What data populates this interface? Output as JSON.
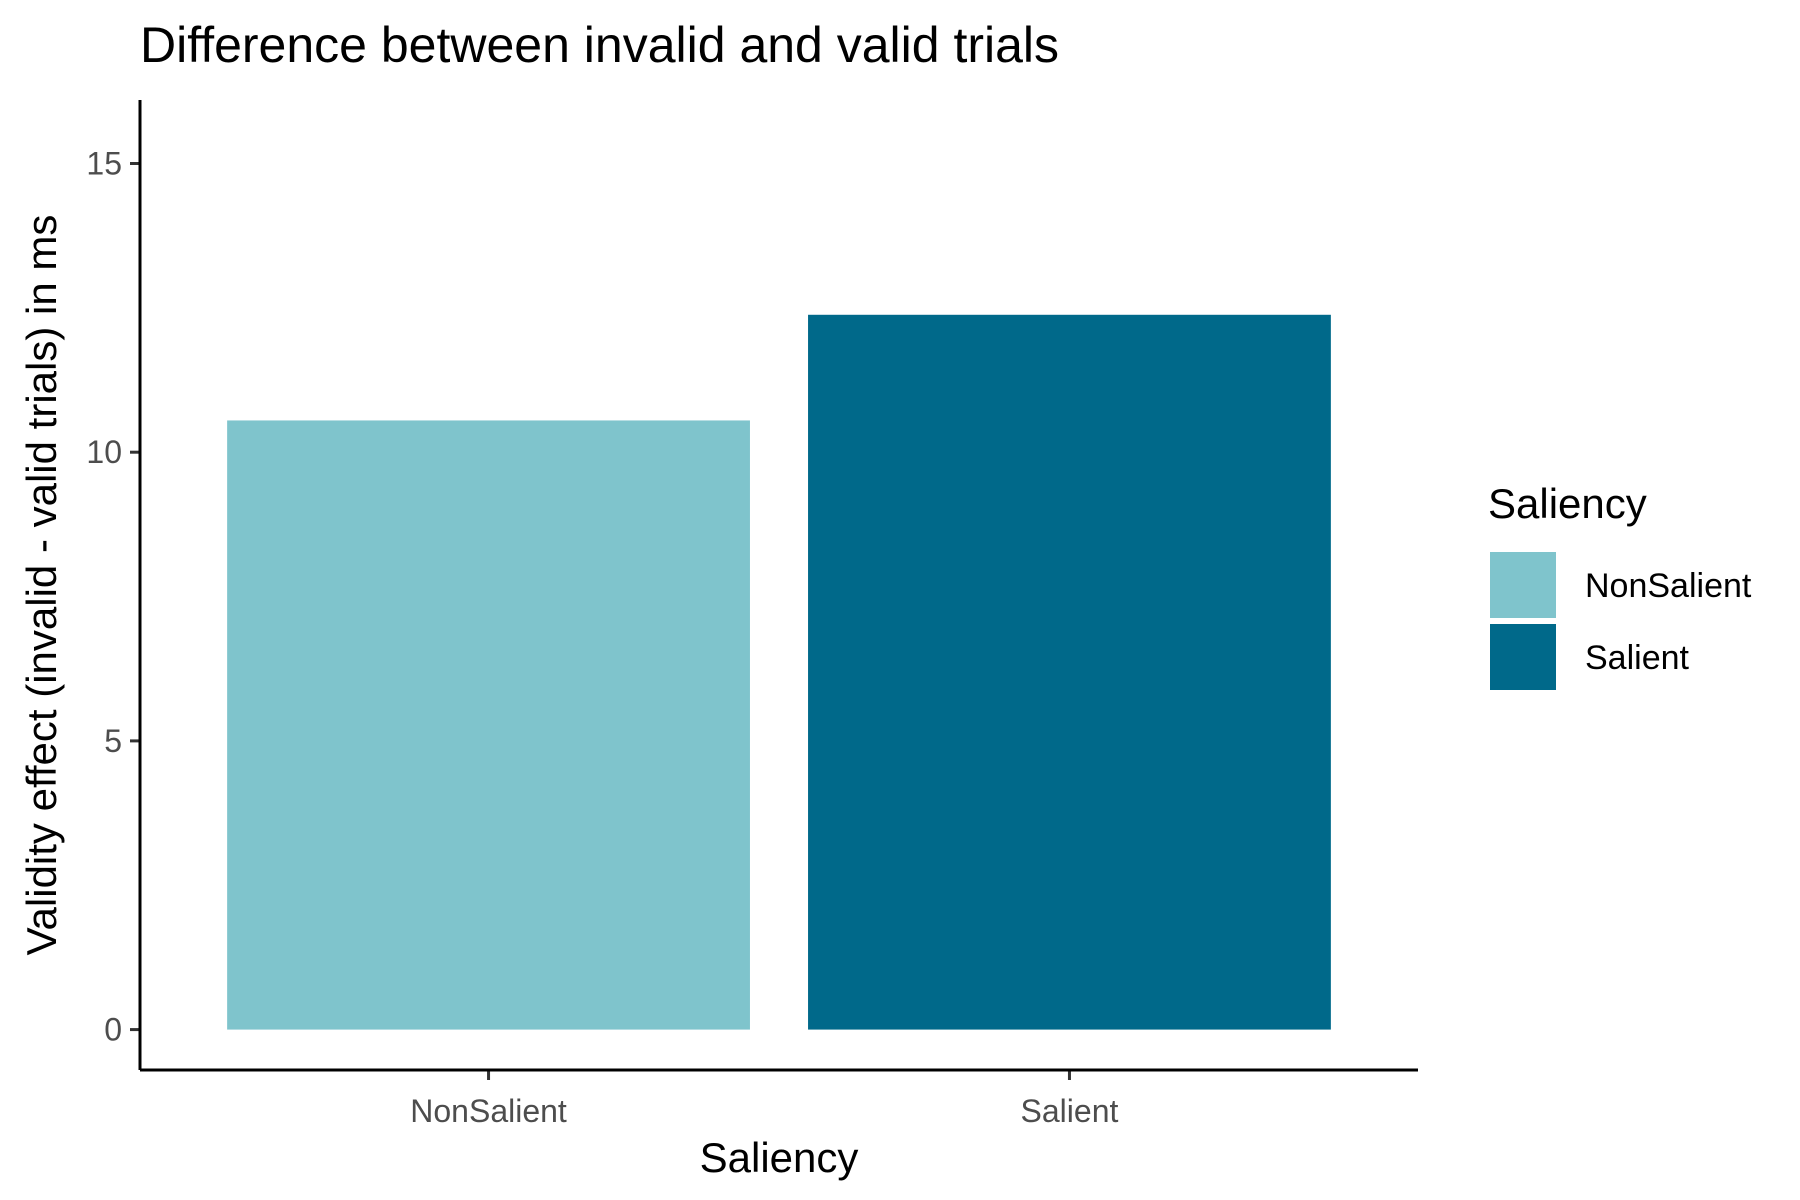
{
  "chart_data": {
    "type": "bar",
    "title": "Difference between invalid and valid trials",
    "xlabel": "Saliency",
    "ylabel": "Validity effect (invalid - valid trials) in ms",
    "categories": [
      "NonSalient",
      "Salient"
    ],
    "values": [
      10.55,
      12.38
    ],
    "colors": [
      "#7fc4cc",
      "#00698a"
    ],
    "ylim": [
      -0.7,
      16.1
    ],
    "yticks": [
      0,
      5,
      10,
      15
    ],
    "ytick_labels": [
      "0",
      "5",
      "10",
      "15"
    ],
    "grid": false,
    "legend": {
      "title": "Saliency",
      "position": "right",
      "entries": [
        "NonSalient",
        "Salient"
      ]
    }
  }
}
